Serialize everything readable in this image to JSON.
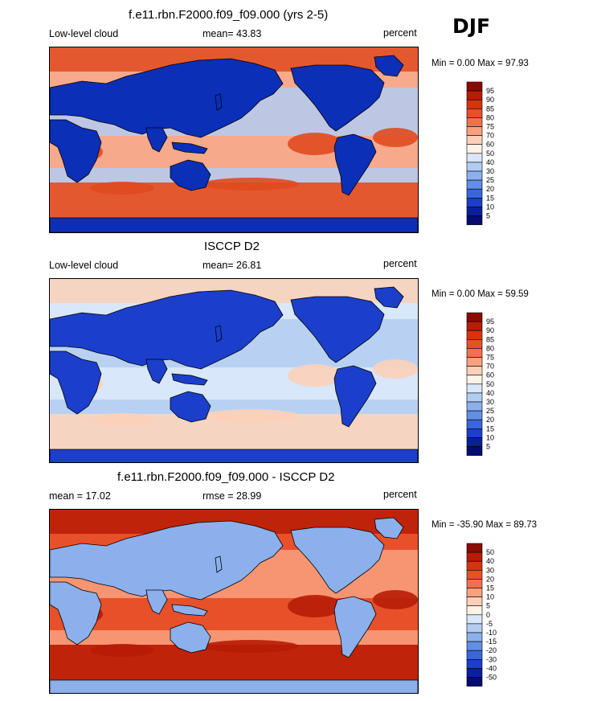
{
  "season": "DJF",
  "panels": [
    {
      "title": "f.e11.rbn.F2000.f09_f09.000 (yrs 2-5)",
      "left_label": "Low-level cloud",
      "center_label": "mean=  43.83",
      "right_label": "percent",
      "minmax": "Min =   0.00 Max =  97.93",
      "colorbar_labels": [
        "95",
        "90",
        "85",
        "80",
        "75",
        "70",
        "60",
        "50",
        "40",
        "30",
        "25",
        "20",
        "15",
        "10",
        "5"
      ],
      "colorbar_colors": [
        "#8c0a00",
        "#b71c05",
        "#d7330d",
        "#e8502a",
        "#f2714c",
        "#f9a17f",
        "#fcd0b8",
        "#fff2e6",
        "#d8e6f9",
        "#b3cdf2",
        "#8cb0ec",
        "#628fe3",
        "#3a66d9",
        "#1b3fcb",
        "#0a1f9a",
        "#050c70"
      ],
      "map_colors": {
        "ocean_high": "#e04a1f",
        "ocean_mid": "#f7a98b",
        "ocean_low": "#b3cdf2",
        "land": "#0c2fb8"
      }
    },
    {
      "title": "ISCCP D2",
      "left_label": "Low-level cloud",
      "center_label": "mean=  26.81",
      "right_label": "percent",
      "minmax": "Min =   0.00 Max =  59.59",
      "colorbar_labels": [
        "95",
        "90",
        "85",
        "80",
        "75",
        "70",
        "60",
        "50",
        "40",
        "30",
        "25",
        "20",
        "15",
        "10",
        "5"
      ],
      "colorbar_colors": [
        "#8c0a00",
        "#b71c05",
        "#d7330d",
        "#e8502a",
        "#f2714c",
        "#f9a17f",
        "#fcd0b8",
        "#fff2e6",
        "#d8e6f9",
        "#b3cdf2",
        "#8cb0ec",
        "#628fe3",
        "#3a66d9",
        "#1b3fcb",
        "#0a1f9a",
        "#050c70"
      ],
      "map_colors": {
        "ocean_high": "#fcd0b8",
        "ocean_mid": "#d8e6f9",
        "ocean_low": "#b3cdf2",
        "land": "#1b3fcb"
      }
    },
    {
      "title": "f.e11.rbn.F2000.f09_f09.000 - ISCCP D2",
      "left_label": "mean =  17.02",
      "center_label": "rmse =  28.99",
      "right_label": "percent",
      "minmax": "Min = -35.90 Max =  89.73",
      "colorbar_labels": [
        "50",
        "40",
        "30",
        "20",
        "15",
        "10",
        "5",
        "0",
        "-5",
        "-10",
        "-15",
        "-20",
        "-30",
        "-40",
        "-50"
      ],
      "colorbar_colors": [
        "#8c0a00",
        "#b71c05",
        "#d7330d",
        "#e8502a",
        "#f2714c",
        "#f9a17f",
        "#fcd0b8",
        "#fff2e6",
        "#d8e6f9",
        "#b3cdf2",
        "#8cb0ec",
        "#628fe3",
        "#3a66d9",
        "#1b3fcb",
        "#0a1f9a",
        "#050c70"
      ],
      "map_colors": {
        "ocean_high": "#b71c05",
        "ocean_mid": "#e8502a",
        "ocean_low": "#f9a17f",
        "land": "#8cb0ec"
      }
    }
  ]
}
